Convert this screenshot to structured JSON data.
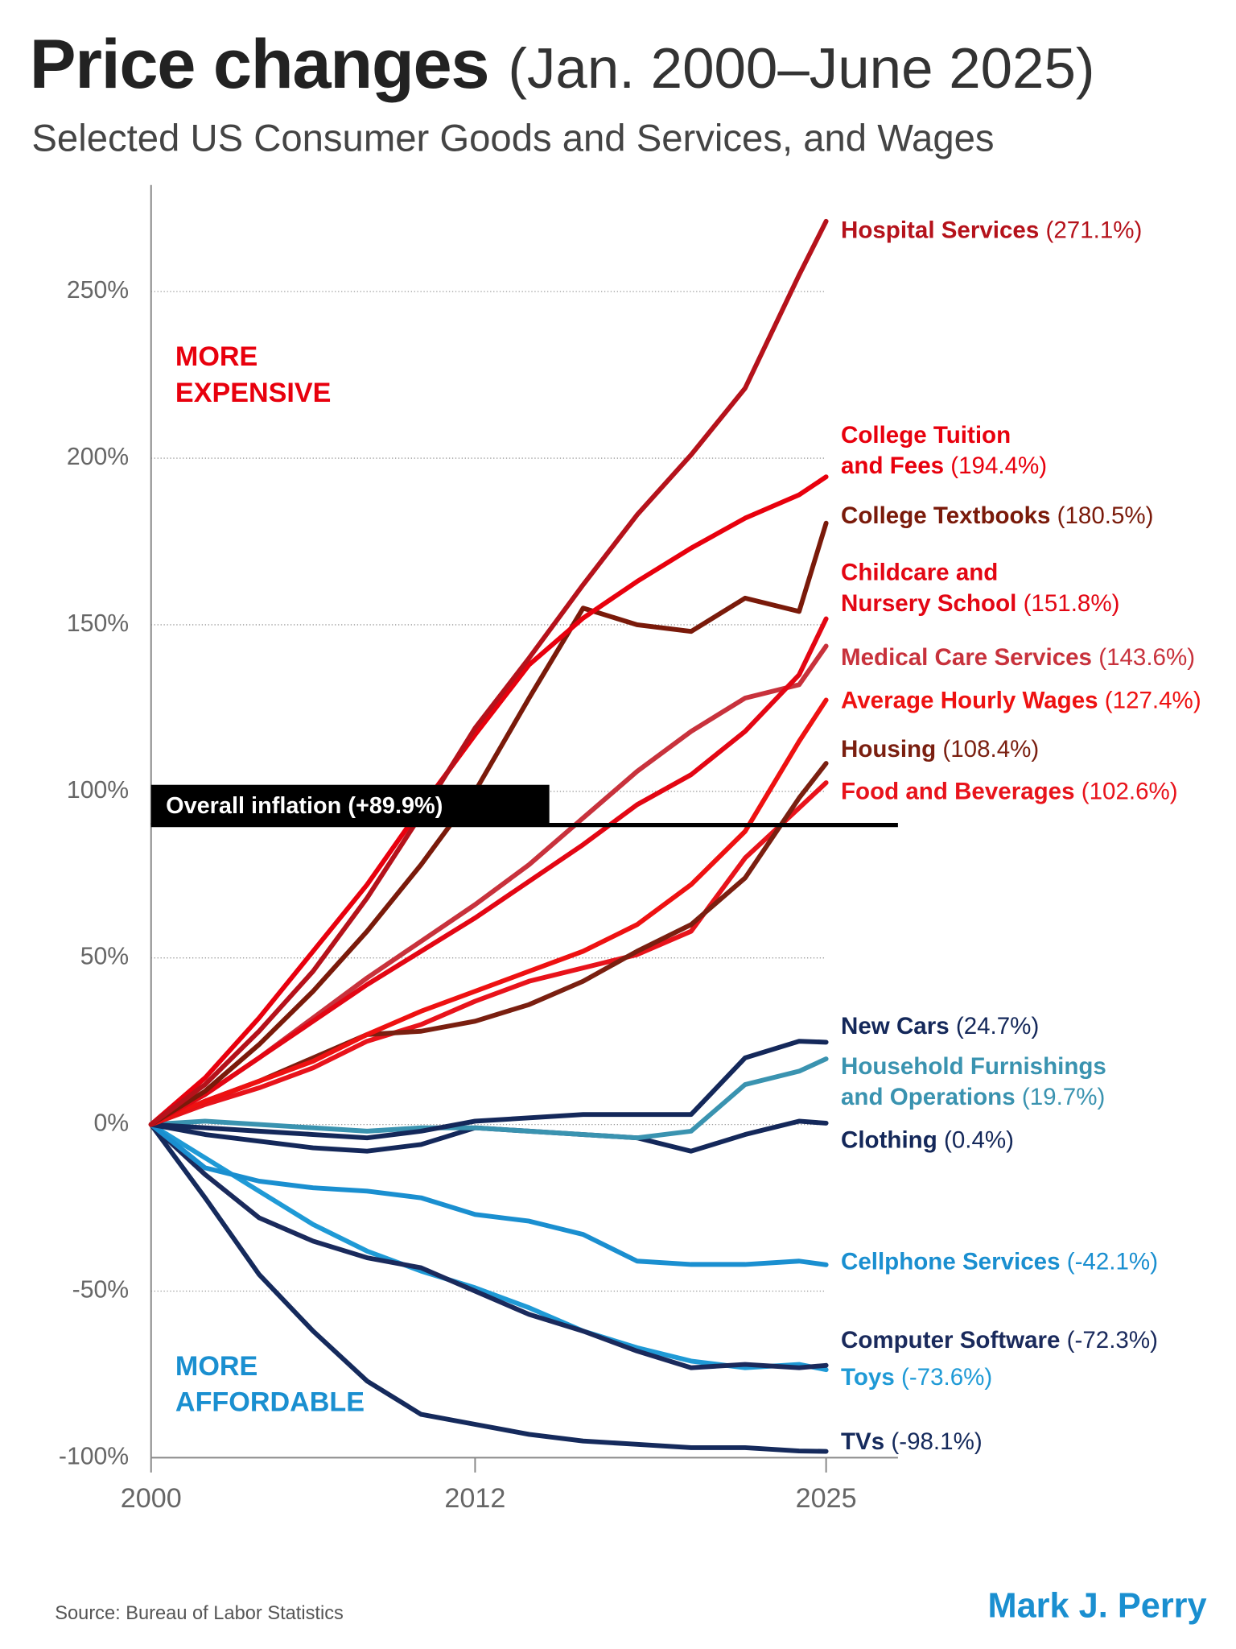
{
  "chart_data": {
    "type": "line",
    "title": "Price changes",
    "title_note": "(Jan. 2000–June 2025)",
    "subtitle": "Selected US Consumer Goods and Services, and Wages",
    "x": [
      2000,
      2002,
      2004,
      2006,
      2008,
      2010,
      2012,
      2014,
      2016,
      2018,
      2020,
      2022,
      2024,
      2025
    ],
    "xlim": [
      2000,
      2025
    ],
    "xticks": [
      2000,
      2012,
      2025
    ],
    "ylim": [
      -100,
      282
    ],
    "yticks": [
      {
        "value": -100,
        "label": "-100%"
      },
      {
        "value": -50,
        "label": "-50%"
      },
      {
        "value": 0,
        "label": "0%"
      },
      {
        "value": 50,
        "label": "50%"
      },
      {
        "value": 100,
        "label": "100%"
      },
      {
        "value": 150,
        "label": "150%"
      },
      {
        "value": 200,
        "label": "200%"
      },
      {
        "value": 250,
        "label": "250%"
      }
    ],
    "grid": true,
    "series": [
      {
        "name": "TVs",
        "end_label": "(-98.1%)",
        "color": "#152a5c",
        "values": [
          0,
          -22,
          -45,
          -62,
          -77,
          -87,
          -90,
          -93,
          -95,
          -96,
          -97,
          -97,
          -98,
          -98.1
        ]
      },
      {
        "name": "Toys",
        "end_label": "(-73.6%)",
        "color": "#1f9ad6",
        "values": [
          0,
          -10,
          -20,
          -30,
          -38,
          -44,
          -49,
          -55,
          -62,
          -67,
          -71,
          -73,
          -72,
          -73.6
        ]
      },
      {
        "name": "Computer Software",
        "end_label": "(-72.3%)",
        "color": "#1a2a5c",
        "values": [
          0,
          -15,
          -28,
          -35,
          -40,
          -43,
          -50,
          -57,
          -62,
          -68,
          -73,
          -72,
          -73,
          -72.3
        ]
      },
      {
        "name": "Cellphone Services",
        "end_label": "(-42.1%)",
        "color": "#1a8fd0",
        "values": [
          0,
          -13,
          -17,
          -19,
          -20,
          -22,
          -27,
          -29,
          -33,
          -41,
          -42,
          -42,
          -41,
          -42.1
        ]
      },
      {
        "name": "Clothing",
        "end_label": "(0.4%)",
        "color": "#14285a",
        "values": [
          0,
          -3,
          -5,
          -7,
          -8,
          -6,
          -1,
          -2,
          -3,
          -4,
          -8,
          -3,
          1,
          0.4
        ]
      },
      {
        "name": "Household Furnishings\nand Operations",
        "end_label": "(19.7%)",
        "color": "#3a93b0",
        "values": [
          0,
          1,
          0,
          -1,
          -2,
          -1,
          -1,
          -2,
          -3,
          -4,
          -2,
          12,
          16,
          19.7
        ]
      },
      {
        "name": "New Cars",
        "end_label": "(24.7%)",
        "color": "#14285a",
        "values": [
          0,
          -1,
          -2,
          -3,
          -4,
          -2,
          1,
          2,
          3,
          3,
          3,
          20,
          25,
          24.7
        ]
      },
      {
        "name": "Food and Beverages",
        "end_label": "(102.6%)",
        "color": "#e8131b",
        "values": [
          0,
          6,
          11,
          17,
          25,
          30,
          37,
          43,
          47,
          51,
          58,
          80,
          95,
          102.6
        ]
      },
      {
        "name": "Housing",
        "end_label": "(108.4%)",
        "color": "#7a1f10",
        "values": [
          0,
          7,
          13,
          20,
          27,
          28,
          31,
          36,
          43,
          52,
          60,
          74,
          98,
          108.4
        ]
      },
      {
        "name": "Average Hourly Wages",
        "end_label": "(127.4%)",
        "color": "#ee1111",
        "values": [
          0,
          7,
          13,
          19,
          27,
          34,
          40,
          46,
          52,
          60,
          72,
          88,
          115,
          127.4
        ]
      },
      {
        "name": "Medical Care Services",
        "end_label": "(143.6%)",
        "color": "#c8323c",
        "values": [
          0,
          9,
          20,
          32,
          44,
          55,
          66,
          78,
          92,
          106,
          118,
          128,
          132,
          143.6
        ]
      },
      {
        "name": "Childcare and\nNursery School",
        "end_label": "(151.8%)",
        "color": "#e30613",
        "values": [
          0,
          9,
          20,
          31,
          42,
          52,
          62,
          73,
          84,
          96,
          105,
          118,
          135,
          151.8
        ]
      },
      {
        "name": "College Textbooks",
        "end_label": "(180.5%)",
        "color": "#7a1a0a",
        "values": [
          0,
          10,
          24,
          40,
          58,
          78,
          100,
          128,
          155,
          150,
          148,
          158,
          154,
          180.5
        ]
      },
      {
        "name": "College Tuition\nand Fees",
        "end_label": "(194.4%)",
        "color": "#e8000d",
        "values": [
          0,
          14,
          32,
          52,
          72,
          95,
          117,
          138,
          152,
          163,
          173,
          182,
          189,
          194.4
        ]
      },
      {
        "name": "Hospital Services",
        "end_label": "(271.1%)",
        "color": "#b5121b",
        "values": [
          0,
          12,
          28,
          46,
          68,
          93,
          119,
          140,
          162,
          183,
          201,
          221,
          255,
          271.1
        ]
      }
    ],
    "reference_line": {
      "label": "Overall inflation (+89.9%)",
      "value": 89.9
    },
    "annotations": [
      {
        "text": "MORE\nEXPENSIVE",
        "color": "#e8000d"
      },
      {
        "text": "MORE\nAFFORDABLE",
        "color": "#1a8fd0"
      }
    ],
    "source": "Source:  Bureau of Labor Statistics",
    "credit": "Mark J. Perry"
  }
}
